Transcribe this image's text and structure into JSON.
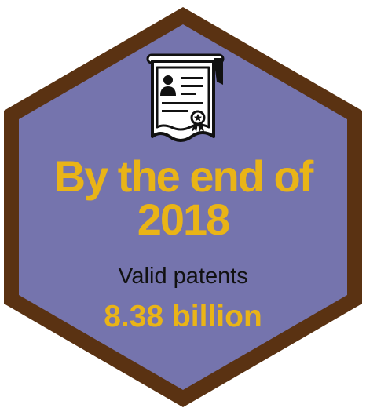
{
  "headline": {
    "line1": "By the end of",
    "line2": "2018"
  },
  "stat": {
    "caption": "Valid patents",
    "value": "8.38 billion"
  },
  "icon": "certificate-icon",
  "colors": {
    "hex_fill": "#7574ad",
    "hex_border": "#5a3212",
    "accent": "#e9b417",
    "text_dark": "#111111"
  }
}
